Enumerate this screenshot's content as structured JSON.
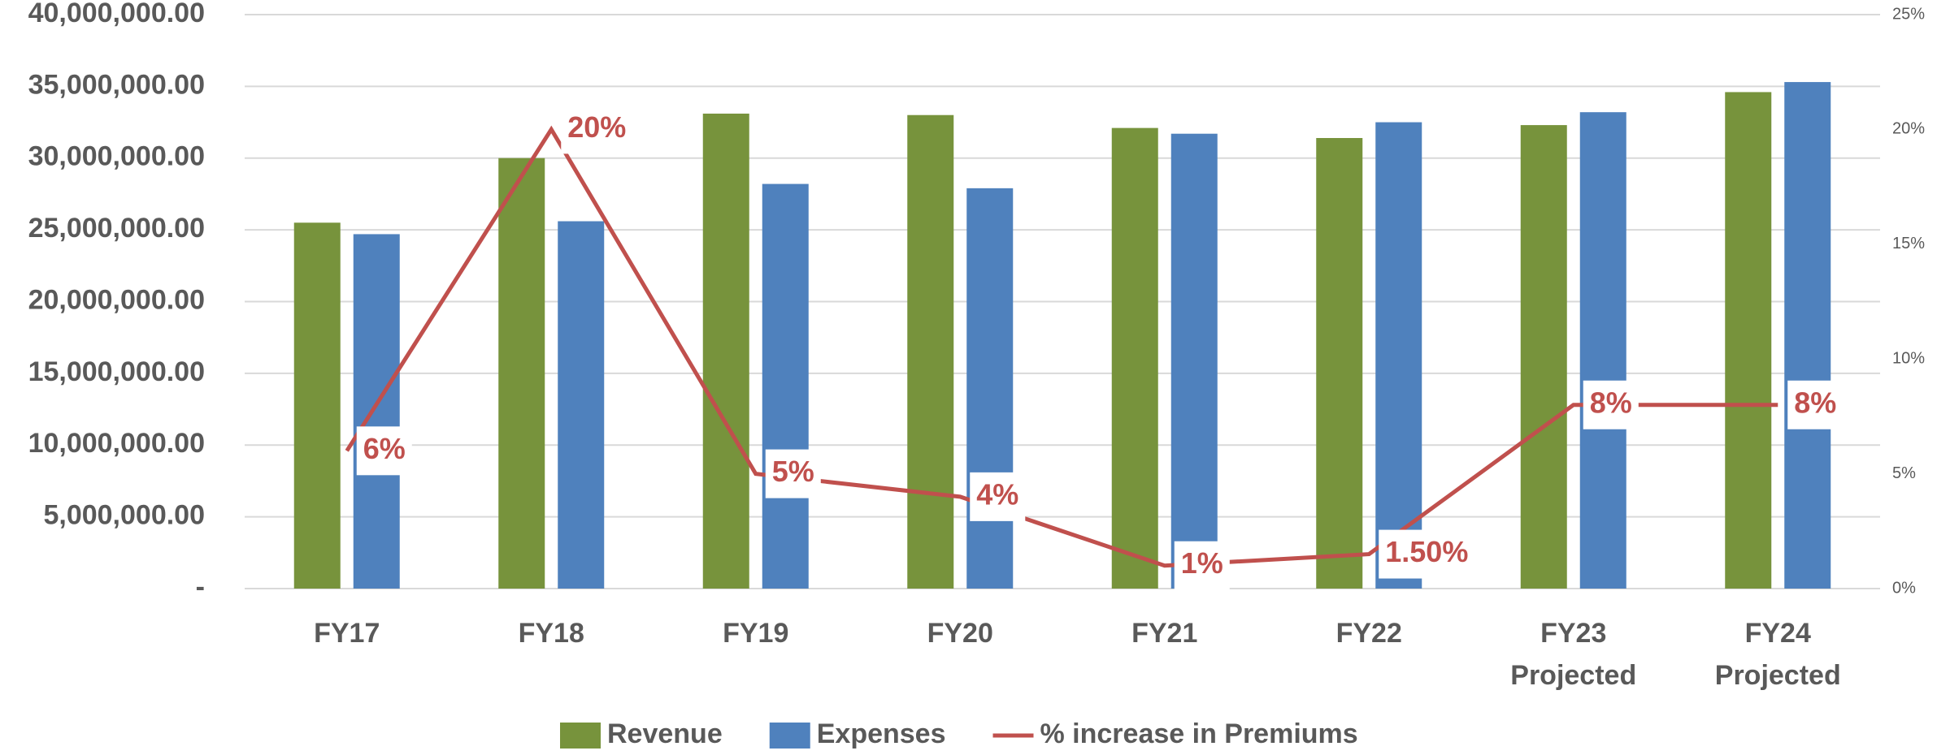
{
  "chart_data": {
    "type": "bar-line",
    "categories": [
      "FY17",
      "FY18",
      "FY19",
      "FY20",
      "FY21",
      "FY22",
      "FY23 Projected",
      "FY24 Projected"
    ],
    "series": [
      {
        "name": "Revenue",
        "type": "bar",
        "color": "#77933c",
        "values": [
          25500000,
          30000000,
          33100000,
          33000000,
          32100000,
          31400000,
          32300000,
          34600000
        ]
      },
      {
        "name": "Expenses",
        "type": "bar",
        "color": "#4f81bd",
        "values": [
          24700000,
          25600000,
          28200000,
          27900000,
          31700000,
          32500000,
          33200000,
          35300000
        ]
      },
      {
        "name": "% increase in Premiums",
        "type": "line",
        "axis": "y2",
        "color": "#c0504d",
        "values": [
          6,
          20,
          5,
          4,
          1,
          1.5,
          8,
          8
        ],
        "value_labels": [
          "6%",
          "20%",
          "5%",
          "4%",
          "1%",
          "1.50%",
          "8%",
          "8%"
        ]
      }
    ],
    "ylim": [
      0,
      40000000
    ],
    "yticks": [
      {
        "value": 0,
        "label": "-"
      },
      {
        "value": 5000000,
        "label": "5,000,000.00"
      },
      {
        "value": 10000000,
        "label": "10,000,000.00"
      },
      {
        "value": 15000000,
        "label": "15,000,000.00"
      },
      {
        "value": 20000000,
        "label": "20,000,000.00"
      },
      {
        "value": 25000000,
        "label": "25,000,000.00"
      },
      {
        "value": 30000000,
        "label": "30,000,000.00"
      },
      {
        "value": 35000000,
        "label": "35,000,000.00"
      },
      {
        "value": 40000000,
        "label": "40,000,000.00"
      }
    ],
    "y2lim": [
      0,
      25
    ],
    "y2ticks": [
      {
        "value": 0,
        "label": "0%"
      },
      {
        "value": 5,
        "label": "5%"
      },
      {
        "value": 10,
        "label": "10%"
      },
      {
        "value": 15,
        "label": "15%"
      },
      {
        "value": 20,
        "label": "20%"
      },
      {
        "value": 25,
        "label": "25%"
      }
    ],
    "grid": true,
    "legend": "bottom"
  }
}
